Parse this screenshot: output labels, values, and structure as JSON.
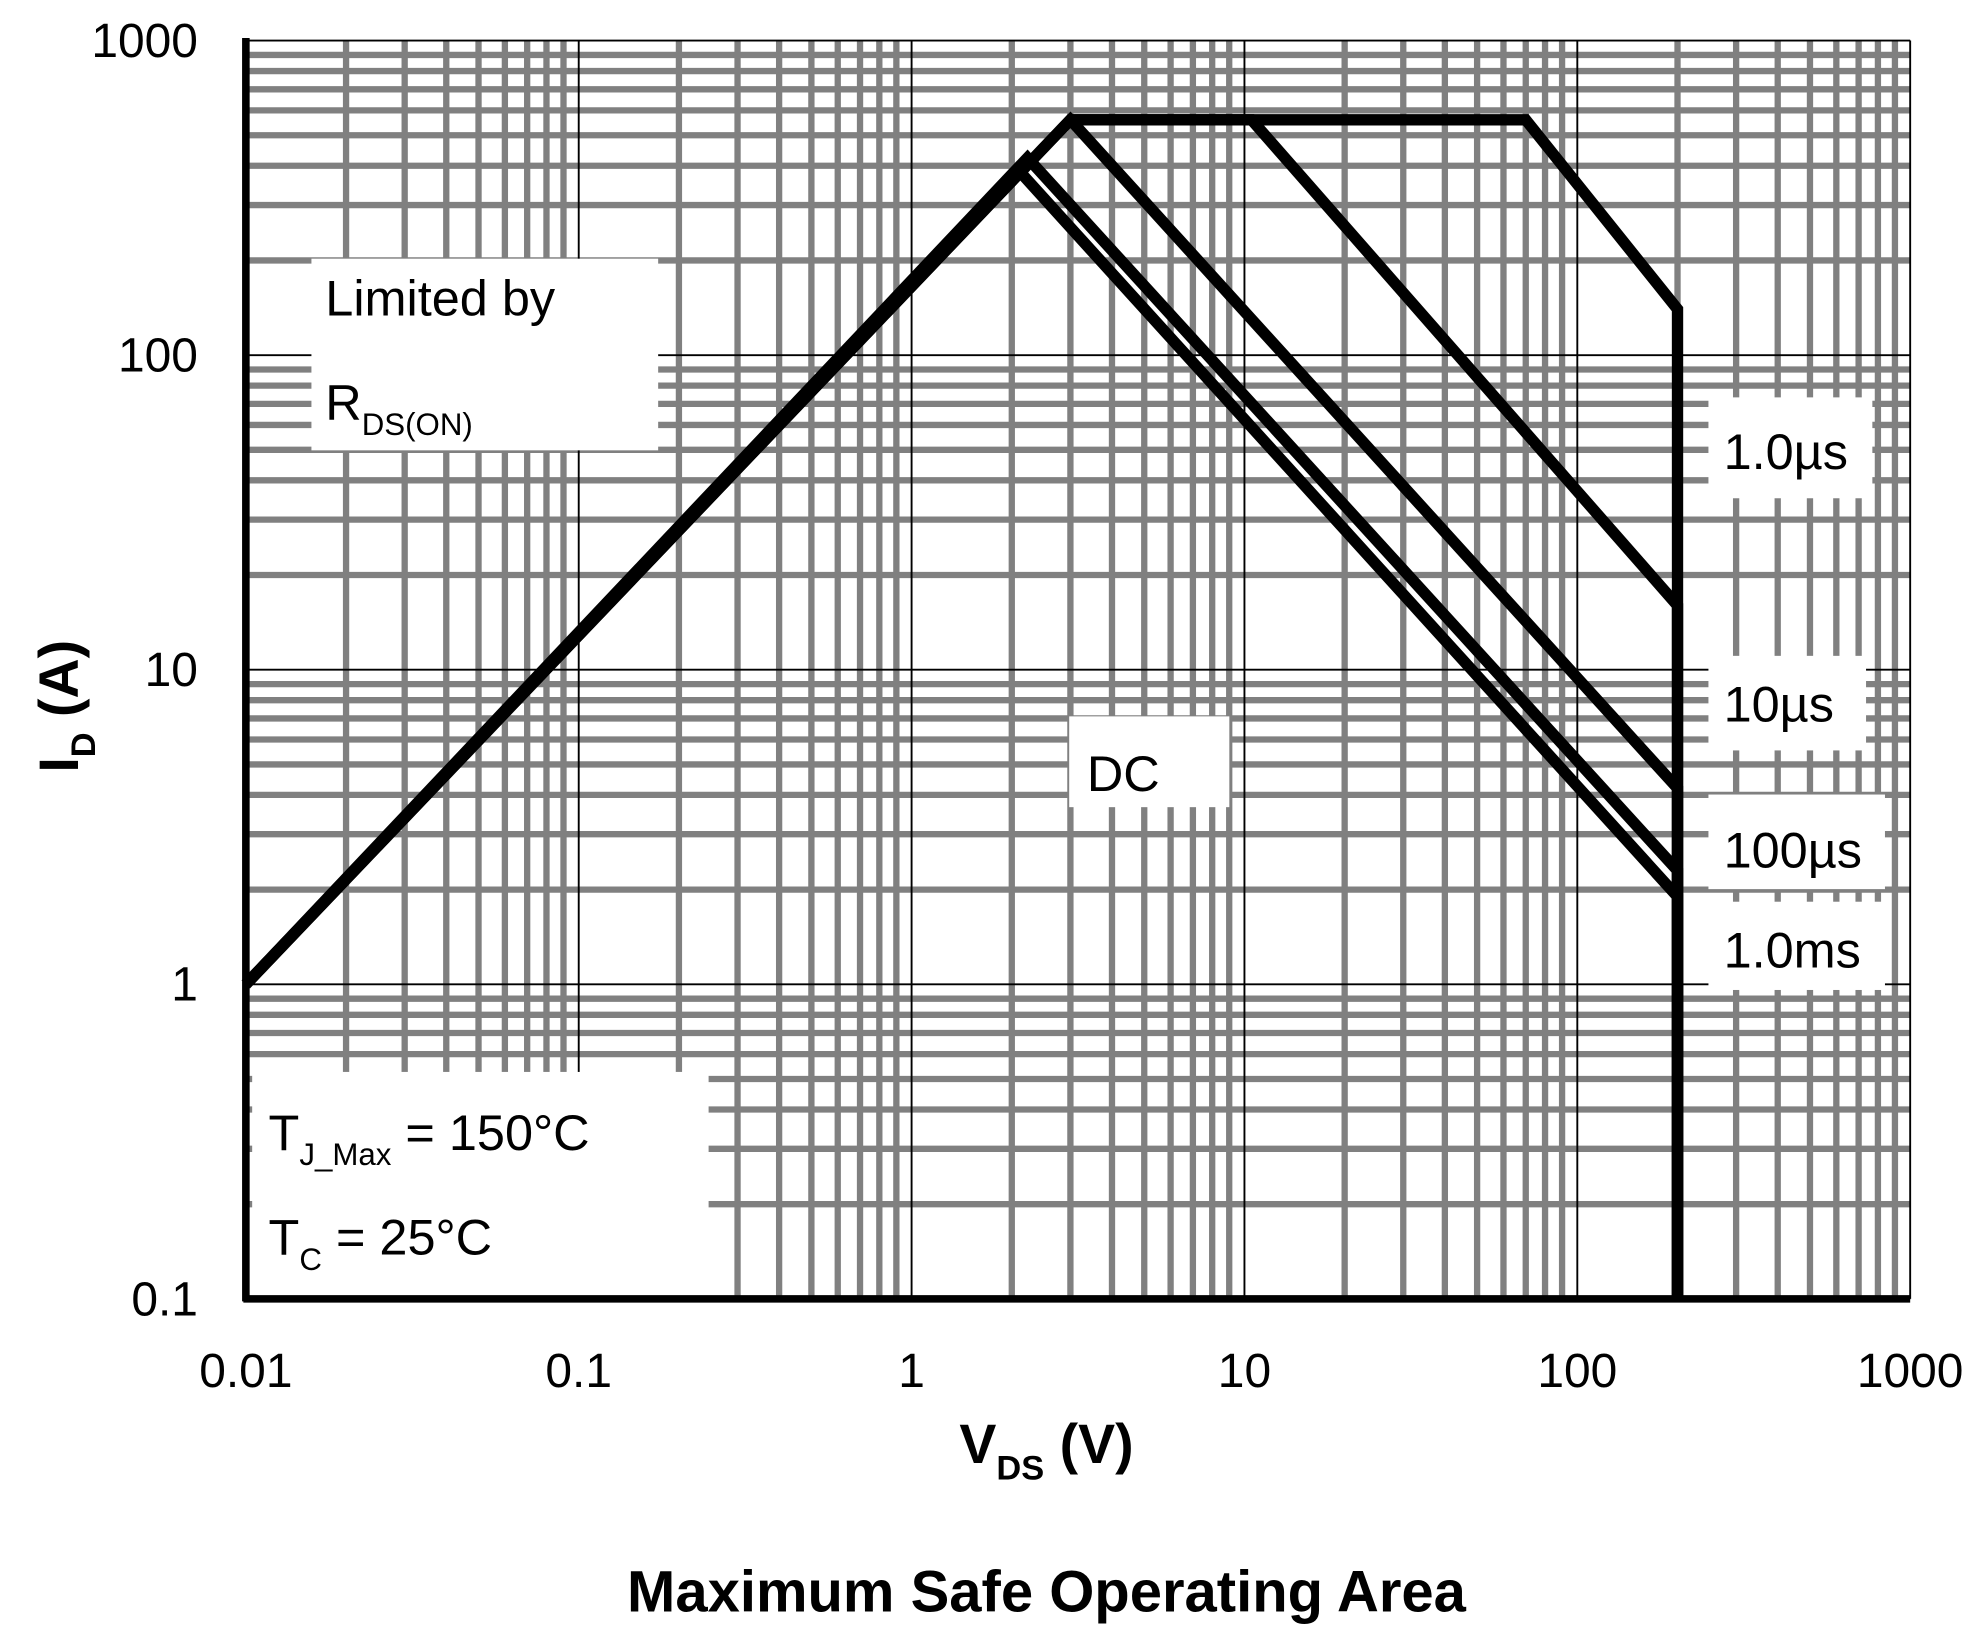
{
  "chart_data": {
    "type": "line",
    "title": "Maximum Safe Operating Area",
    "x_label": {
      "text": "V",
      "sub": "DS",
      "rest": " (V)"
    },
    "y_label": {
      "text": "I",
      "sub": "D",
      "rest": " (A)"
    },
    "xscale": "log",
    "yscale": "log",
    "xlim": [
      0.01,
      1000
    ],
    "ylim": [
      0.1,
      1000
    ],
    "xticks": [
      0.01,
      0.1,
      1,
      10,
      100,
      1000
    ],
    "yticks": [
      0.1,
      1,
      10,
      100,
      1000
    ],
    "grid": true,
    "minor_grid": true,
    "series": [
      {
        "name": "1.0µs",
        "color": "#000000",
        "x": [
          0.01,
          3,
          70,
          200,
          200
        ],
        "values": [
          1,
          560,
          560,
          140,
          0.1
        ]
      },
      {
        "name": "10µs",
        "color": "#000000",
        "x": [
          0.01,
          3,
          10.5,
          200,
          200
        ],
        "values": [
          1,
          560,
          560,
          16,
          0.1
        ]
      },
      {
        "name": "100µs",
        "color": "#000000",
        "x": [
          0.01,
          3,
          200,
          200
        ],
        "values": [
          1,
          560,
          4.2,
          0.1
        ]
      },
      {
        "name": "1.0ms",
        "color": "#000000",
        "x": [
          0.01,
          2.23,
          200,
          200
        ],
        "values": [
          1,
          424,
          2.3,
          0.1
        ]
      },
      {
        "name": "DC",
        "color": "#000000",
        "x": [
          0.01,
          2.1,
          200,
          200
        ],
        "values": [
          1,
          386,
          1.9,
          0.1
        ]
      }
    ],
    "annotations": [
      {
        "text": "Limited by"
      },
      {
        "text": "R",
        "sub": "DS(ON)"
      },
      {
        "text": "T",
        "sub": "J_Max",
        "rest": " = 150°C"
      },
      {
        "text": "T",
        "sub": "C",
        "rest": " = 25°C"
      }
    ]
  }
}
